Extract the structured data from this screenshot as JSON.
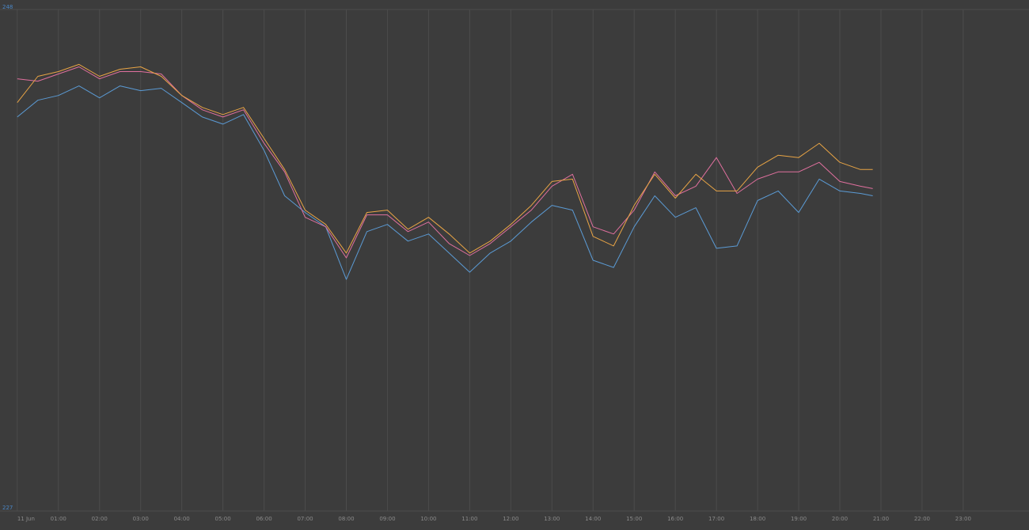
{
  "chart_data": {
    "type": "line",
    "x": [
      0,
      0.5,
      1,
      1.5,
      2,
      2.5,
      3,
      3.5,
      4,
      4.5,
      5,
      5.5,
      6,
      6.5,
      7,
      7.5,
      8,
      8.5,
      9,
      9.5,
      10,
      10.5,
      11,
      11.5,
      12,
      12.5,
      13,
      13.5,
      14,
      14.5,
      15,
      15.5,
      16,
      16.5,
      17,
      17.5,
      18,
      18.5,
      19,
      19.5,
      20,
      20.5,
      20.8
    ],
    "series": [
      {
        "color": "#5b9bd5",
        "values": [
          243.5,
          244.2,
          244.4,
          244.8,
          244.3,
          244.8,
          244.6,
          244.7,
          244.1,
          243.5,
          243.2,
          243.6,
          242.1,
          240.2,
          239.5,
          238.9,
          236.7,
          238.7,
          239.0,
          238.3,
          238.6,
          237.8,
          237.0,
          237.8,
          238.3,
          239.1,
          239.8,
          239.6,
          237.5,
          237.2,
          238.9,
          240.2,
          239.3,
          239.7,
          238.0,
          238.1,
          240.0,
          240.4,
          239.5,
          240.9,
          240.4,
          240.3,
          240.2
        ]
      },
      {
        "color": "#e0709e",
        "values": [
          245.1,
          245.0,
          245.3,
          245.6,
          245.1,
          245.4,
          245.4,
          245.3,
          244.4,
          243.8,
          243.5,
          243.8,
          242.4,
          241.2,
          239.3,
          238.9,
          237.6,
          239.4,
          239.4,
          238.7,
          239.1,
          238.2,
          237.7,
          238.2,
          238.9,
          239.6,
          240.6,
          241.1,
          238.9,
          238.6,
          239.6,
          241.2,
          240.2,
          240.6,
          241.8,
          240.3,
          240.9,
          241.2,
          241.2,
          241.6,
          240.8,
          240.6,
          240.5
        ]
      },
      {
        "color": "#e8a445",
        "values": [
          244.1,
          245.2,
          245.4,
          245.7,
          245.2,
          245.5,
          245.6,
          245.2,
          244.4,
          243.9,
          243.6,
          243.9,
          242.6,
          241.3,
          239.6,
          239.0,
          237.8,
          239.5,
          239.6,
          238.8,
          239.3,
          238.6,
          237.8,
          238.3,
          239.0,
          239.8,
          240.8,
          240.9,
          238.5,
          238.1,
          239.8,
          241.1,
          240.1,
          241.1,
          240.4,
          240.4,
          241.4,
          241.9,
          241.8,
          242.4,
          241.6,
          241.3,
          241.3
        ]
      }
    ],
    "xlim": [
      -0.42,
      24.6
    ],
    "ylim": [
      227,
      248
    ],
    "yticks": [
      227,
      248
    ],
    "xticks": [
      {
        "value": 0,
        "label": "11 Jun"
      },
      {
        "value": 1,
        "label": "01:00"
      },
      {
        "value": 2,
        "label": "02:00"
      },
      {
        "value": 3,
        "label": "03:00"
      },
      {
        "value": 4,
        "label": "04:00"
      },
      {
        "value": 5,
        "label": "05:00"
      },
      {
        "value": 6,
        "label": "06:00"
      },
      {
        "value": 7,
        "label": "07:00"
      },
      {
        "value": 8,
        "label": "08:00"
      },
      {
        "value": 9,
        "label": "09:00"
      },
      {
        "value": 10,
        "label": "10:00"
      },
      {
        "value": 11,
        "label": "11:00"
      },
      {
        "value": 12,
        "label": "12:00"
      },
      {
        "value": 13,
        "label": "13:00"
      },
      {
        "value": 14,
        "label": "14:00"
      },
      {
        "value": 15,
        "label": "15:00"
      },
      {
        "value": 16,
        "label": "16:00"
      },
      {
        "value": 17,
        "label": "17:00"
      },
      {
        "value": 18,
        "label": "18:00"
      },
      {
        "value": 19,
        "label": "19:00"
      },
      {
        "value": 20,
        "label": "20:00"
      },
      {
        "value": 21,
        "label": "21:00"
      },
      {
        "value": 22,
        "label": "22:00"
      },
      {
        "value": 23,
        "label": "23:00"
      }
    ],
    "grid": true
  }
}
